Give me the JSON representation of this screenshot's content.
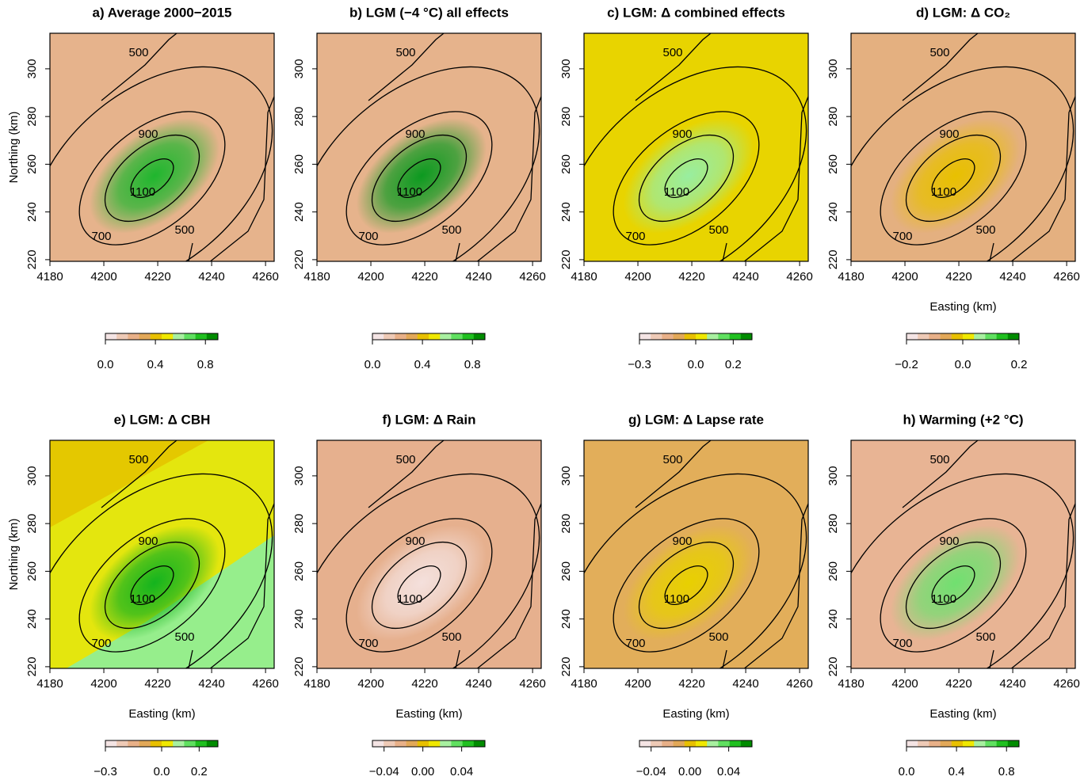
{
  "chart_data": [
    {
      "type": "heatmap",
      "title": "a) Average 2000−2015",
      "ylabel": "Northing (km)",
      "xlim": [
        4180,
        4263.2
      ],
      "ylim": [
        219.3,
        314.9
      ],
      "xticks": [
        4180,
        4200,
        4220,
        4240,
        4260
      ],
      "yticks": [
        220,
        240,
        260,
        280,
        300
      ],
      "color": "#e6b38c",
      "center_color": "#1fb62e",
      "contour_labels": [
        500,
        900,
        1100,
        700,
        500
      ],
      "clim": [
        0,
        0.9
      ],
      "cticks": [
        {
          "value": 0,
          "label": "0.0"
        },
        0.4,
        0.8
      ],
      "colorbar_colors": [
        "#f4e4e4",
        "#eecab6",
        "#e8b088",
        "#e2a858",
        "#e8c000",
        "#f0e800",
        "#a8f0a0",
        "#60e060",
        "#20c020",
        "#008c00"
      ]
    },
    {
      "type": "heatmap",
      "title": "b) LGM (−4 °C) all effects",
      "xlim": [
        4180,
        4263.2
      ],
      "ylim": [
        219.3,
        314.9
      ],
      "xticks": [
        4180,
        4200,
        4220,
        4240,
        4260
      ],
      "yticks": [
        220,
        240,
        260,
        280,
        300
      ],
      "color": "#e6b38c",
      "center_color": "#0c9a20",
      "contour_labels": [
        500,
        900,
        1100,
        700,
        500
      ],
      "clim": [
        0,
        0.9
      ],
      "cticks": [
        {
          "value": 0,
          "label": "0.0"
        },
        0.4,
        0.8
      ],
      "colorbar_colors": [
        "#f4e4e4",
        "#eecab6",
        "#e8b088",
        "#e2a858",
        "#e8c000",
        "#f0e800",
        "#a8f0a0",
        "#60e060",
        "#20c020",
        "#008c00"
      ]
    },
    {
      "type": "heatmap",
      "title": "c) LGM: Δ combined effects",
      "xlim": [
        4180,
        4263.2
      ],
      "ylim": [
        219.3,
        314.9
      ],
      "xticks": [
        4180,
        4200,
        4220,
        4240,
        4260
      ],
      "yticks": [
        220,
        240,
        260,
        280,
        300
      ],
      "color": "#e8d400",
      "center_color": "#98eea0",
      "contour_labels": [
        500,
        900,
        1100,
        700,
        500
      ],
      "clim": [
        -0.3,
        0.3
      ],
      "cticks": [
        {
          "value": -0.3,
          "label": "−0.3"
        },
        {
          "value": 0,
          "label": "0.0"
        },
        0.2
      ],
      "colorbar_colors": [
        "#f4e4e4",
        "#eecab6",
        "#e8b088",
        "#e2a858",
        "#e8c000",
        "#f0e800",
        "#a8f0a0",
        "#60e060",
        "#20c020",
        "#008c00"
      ]
    },
    {
      "type": "heatmap",
      "title": "d) LGM: Δ CO₂",
      "xlabel": "Easting (km)",
      "xlim": [
        4180,
        4263.2
      ],
      "ylim": [
        219.3,
        314.9
      ],
      "xticks": [
        4180,
        4200,
        4220,
        4240,
        4260
      ],
      "yticks": [
        220,
        240,
        260,
        280,
        300
      ],
      "color": "#e4b080",
      "center_color": "#e8c000",
      "contour_labels": [
        500,
        900,
        1100,
        700,
        500
      ],
      "clim": [
        -0.2,
        0.2
      ],
      "cticks": [
        {
          "value": -0.2,
          "label": "−0.2"
        },
        {
          "value": 0,
          "label": "0.0"
        },
        0.2
      ],
      "colorbar_colors": [
        "#f4e4e4",
        "#eecab6",
        "#e8b088",
        "#e2a858",
        "#e8c000",
        "#f0e800",
        "#a8f0a0",
        "#60e060",
        "#20c020",
        "#008c00"
      ]
    },
    {
      "type": "heatmap",
      "title": "e) LGM: Δ CBH",
      "xlabel": "Easting (km)",
      "ylabel": "Northing (km)",
      "xlim": [
        4180,
        4263.2
      ],
      "ylim": [
        219.3,
        314.9
      ],
      "xticks": [
        4180,
        4200,
        4220,
        4240,
        4260
      ],
      "yticks": [
        220,
        240,
        260,
        280,
        300
      ],
      "color": "#96ee8c",
      "corner_color": "#ece400",
      "center_color": "#14b41e",
      "contour_labels": [
        500,
        900,
        1100,
        700,
        500
      ],
      "clim": [
        -0.3,
        0.3
      ],
      "cticks": [
        {
          "value": -0.3,
          "label": "−0.3"
        },
        {
          "value": 0,
          "label": "0.0"
        },
        0.2
      ],
      "colorbar_colors": [
        "#f4e4e4",
        "#eecab6",
        "#e8b088",
        "#e2a858",
        "#e8c000",
        "#f0e800",
        "#a8f0a0",
        "#60e060",
        "#20c020",
        "#008c00"
      ]
    },
    {
      "type": "heatmap",
      "title": "f) LGM: Δ Rain",
      "xlabel": "Easting (km)",
      "xlim": [
        4180,
        4263.2
      ],
      "ylim": [
        219.3,
        314.9
      ],
      "xticks": [
        4180,
        4200,
        4220,
        4240,
        4260
      ],
      "yticks": [
        220,
        240,
        260,
        280,
        300
      ],
      "color": "#e6b08e",
      "center_color": "#f4e0dc",
      "contour_labels": [
        500,
        900,
        1100,
        700,
        500
      ],
      "clim": [
        -0.052,
        0.064
      ],
      "cticks": [
        {
          "value": -0.04,
          "label": "−0.04"
        },
        {
          "value": 0,
          "label": "0.00"
        },
        0.04
      ],
      "colorbar_colors": [
        "#f4e4e4",
        "#eecab6",
        "#e8b088",
        "#e2a858",
        "#e8c000",
        "#f0e800",
        "#a8f0a0",
        "#60e060",
        "#20c020",
        "#008c00"
      ]
    },
    {
      "type": "heatmap",
      "title": "g) LGM: Δ Lapse rate",
      "xlabel": "Easting (km)",
      "xlim": [
        4180,
        4263.2
      ],
      "ylim": [
        219.3,
        314.9
      ],
      "xticks": [
        4180,
        4200,
        4220,
        4240,
        4260
      ],
      "yticks": [
        220,
        240,
        260,
        280,
        300
      ],
      "color": "#e2ae5a",
      "center_color": "#e8d000",
      "contour_labels": [
        500,
        900,
        1100,
        700,
        500
      ],
      "clim": [
        -0.052,
        0.064
      ],
      "cticks": [
        {
          "value": -0.04,
          "label": "−0.04"
        },
        {
          "value": 0,
          "label": "0.00"
        },
        0.04
      ],
      "colorbar_colors": [
        "#f4e4e4",
        "#eecab6",
        "#e8b088",
        "#e2a858",
        "#e8c000",
        "#f0e800",
        "#a8f0a0",
        "#60e060",
        "#20c020",
        "#008c00"
      ]
    },
    {
      "type": "heatmap",
      "title": "h) Warming (+2 °C)",
      "xlabel": "Easting (km)",
      "xlim": [
        4180,
        4263.2
      ],
      "ylim": [
        219.3,
        314.9
      ],
      "xticks": [
        4180,
        4200,
        4220,
        4240,
        4260
      ],
      "yticks": [
        220,
        240,
        260,
        280,
        300
      ],
      "color": "#e8b494",
      "center_color": "#70e070",
      "contour_labels": [
        500,
        900,
        1100,
        700,
        500
      ],
      "clim": [
        0,
        0.9
      ],
      "cticks": [
        {
          "value": 0,
          "label": "0.0"
        },
        0.4,
        0.8
      ],
      "colorbar_colors": [
        "#f4e4e4",
        "#eecab6",
        "#e8b088",
        "#e2a858",
        "#e8c000",
        "#f0e800",
        "#a8f0a0",
        "#60e060",
        "#20c020",
        "#008c00"
      ]
    }
  ]
}
